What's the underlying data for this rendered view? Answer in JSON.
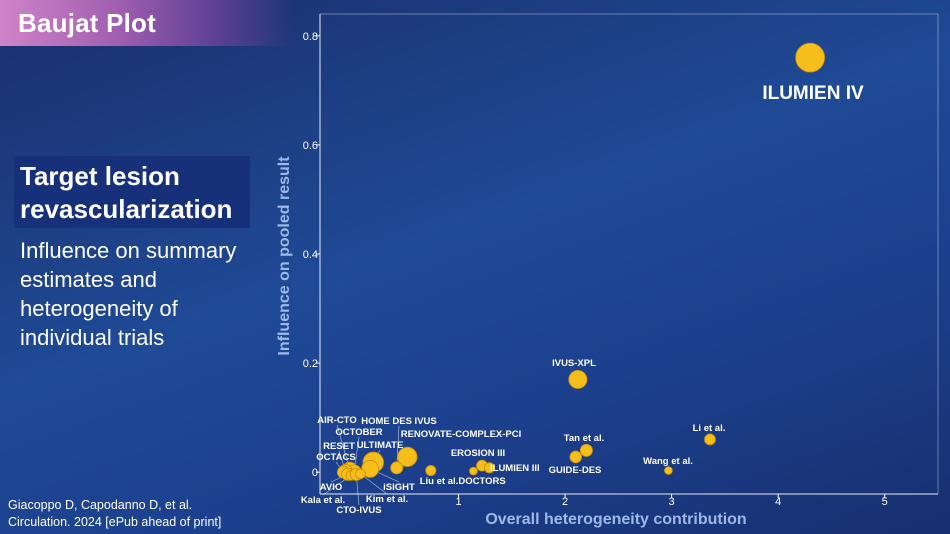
{
  "slide": {
    "title": "Baujat Plot",
    "subtitle_line1": "Target lesion",
    "subtitle_line2": "revascularization",
    "description": "Influence on summary estimates and heterogeneity of individual trials",
    "citation_line1": "Giacoppo D, Capodanno D, et al.",
    "citation_line2": "Circulation. 2024 [ePub ahead of print]"
  },
  "colors": {
    "point": "#f6be1a",
    "point_stroke": "#c98f00",
    "axis": "#ffffff"
  },
  "chart_data": {
    "type": "scatter",
    "xlabel": "Overall heterogeneity contribution",
    "ylabel": "Influence on pooled result",
    "xlim": [
      -0.3,
      5.5
    ],
    "ylim": [
      -0.04,
      0.84
    ],
    "xticks": [
      1,
      2,
      3,
      4,
      5
    ],
    "yticks": [
      0,
      0.2,
      0.4,
      0.6,
      0.8
    ],
    "ytick_labels": [
      "0",
      "0.2",
      "0.4",
      "0.6",
      "0.8"
    ],
    "points": [
      {
        "name": "ILUMIEN IV",
        "x": 4.3,
        "y": 0.76,
        "size": 1.0
      },
      {
        "name": "IVUS-XPL",
        "x": 2.12,
        "y": 0.17,
        "size": 0.55
      },
      {
        "name": "Li et al.",
        "x": 3.36,
        "y": 0.06,
        "size": 0.25
      },
      {
        "name": "Tan et al.",
        "x": 2.2,
        "y": 0.04,
        "size": 0.3
      },
      {
        "name": "GUIDE-DES",
        "x": 2.1,
        "y": 0.028,
        "size": 0.28
      },
      {
        "name": "Wang et al.",
        "x": 2.97,
        "y": 0.003,
        "size": 0.12
      },
      {
        "name": "EROSION III",
        "x": 1.22,
        "y": 0.012,
        "size": 0.25
      },
      {
        "name": "ILUMIEN III",
        "x": 1.29,
        "y": 0.008,
        "size": 0.22
      },
      {
        "name": "Liu et al.",
        "x": 0.74,
        "y": 0.003,
        "size": 0.22
      },
      {
        "name": "DOCTORS",
        "x": 1.14,
        "y": 0.002,
        "size": 0.12
      },
      {
        "name": "RENOVATE-COMPLEX-PCI",
        "x": 0.52,
        "y": 0.028,
        "size": 0.6
      },
      {
        "name": "HOME DES IVUS",
        "x": 0.42,
        "y": 0.008,
        "size": 0.3
      },
      {
        "name": "ULTIMATE",
        "x": 0.2,
        "y": 0.018,
        "size": 0.65
      },
      {
        "name": "iSIGHT",
        "x": 0.17,
        "y": 0.006,
        "size": 0.5
      },
      {
        "name": "AIR-CTO",
        "x": -0.02,
        "y": 0.004,
        "size": 0.45
      },
      {
        "name": "OCTOBER",
        "x": 0.02,
        "y": 0.0,
        "size": 0.4
      },
      {
        "name": "RESET",
        "x": -0.06,
        "y": 0.002,
        "size": 0.35
      },
      {
        "name": "OCTACS",
        "x": -0.08,
        "y": 0.0,
        "size": 0.3
      },
      {
        "name": "AVIO",
        "x": -0.04,
        "y": -0.004,
        "size": 0.3
      },
      {
        "name": "Kala et al.",
        "x": -0.01,
        "y": -0.006,
        "size": 0.2
      },
      {
        "name": "CTO-IVUS",
        "x": 0.04,
        "y": -0.004,
        "size": 0.3
      },
      {
        "name": "Kim et al.",
        "x": 0.08,
        "y": -0.003,
        "size": 0.2
      }
    ]
  }
}
